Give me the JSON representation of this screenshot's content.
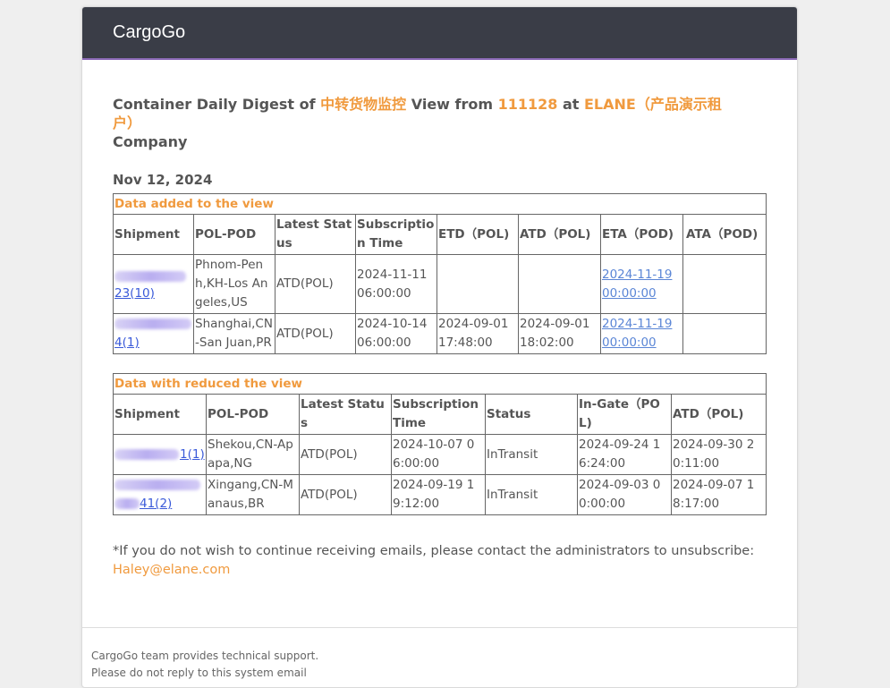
{
  "app": {
    "brand": "CargoGo"
  },
  "digest": {
    "title_prefix": "Container Daily Digest of ",
    "view_name": "中转货物监控",
    "title_mid": " View from ",
    "user_id": "111128",
    "title_at": " at ",
    "company_name": "ELANE（产品演示租户）",
    "title_suffix": "Company",
    "date": "Nov 12, 2024"
  },
  "added_table": {
    "caption": "Data added to the view",
    "headers": [
      "Shipment",
      "POL-POD",
      "Latest Status",
      "Subscription Time",
      "ETD（POL)",
      "ATD（POL)",
      "ETA（POD)",
      "ATA（POD)"
    ],
    "rows": [
      {
        "shipment_visible": "23(10)",
        "pol_pod": "Phnom-Penh,KH-Los Angeles,US",
        "latest_status": "ATD(POL)",
        "subscription_time": "2024-11-11 06:00:00",
        "etd": "",
        "atd": "",
        "eta": "2024-11-19 00:00:00",
        "ata": ""
      },
      {
        "shipment_visible": "4(1)",
        "pol_pod": "Shanghai,CN-San Juan,PR",
        "latest_status": "ATD(POL)",
        "subscription_time": "2024-10-14 06:00:00",
        "etd": "2024-09-01 17:48:00",
        "atd": "2024-09-01 18:02:00",
        "eta": "2024-11-19 00:00:00",
        "ata": ""
      }
    ]
  },
  "reduced_table": {
    "caption": "Data with reduced the view",
    "headers": [
      "Shipment",
      "POL-POD",
      "Latest Status",
      "Subscription Time",
      "Status",
      "In-Gate（POL)",
      "ATD（POL)"
    ],
    "rows": [
      {
        "shipment_visible": "1(1)",
        "pol_pod": "Shekou,CN-Apapa,NG",
        "latest_status": "ATD(POL)",
        "subscription_time": "2024-10-07 06:00:00",
        "status": "InTransit",
        "in_gate": "2024-09-24 16:24:00",
        "atd": "2024-09-30 20:11:00"
      },
      {
        "shipment_visible": "41(2)",
        "pol_pod": "Xingang,CN-Manaus,BR",
        "latest_status": "ATD(POL)",
        "subscription_time": "2024-09-19 19:12:00",
        "status": "InTransit",
        "in_gate": "2024-09-03 00:00:00",
        "atd": "2024-09-07 18:17:00"
      }
    ]
  },
  "notice": {
    "text": "*If you do not wish to continue receiving emails, please contact the administrators to unsubscribe:",
    "email": "Haley@elane.com"
  },
  "footer": {
    "line1": "CargoGo team provides technical support.",
    "line2": "Please do not reply to this system email"
  },
  "colors": {
    "header_bg": "#3a3d47",
    "accent": "#f09a3e",
    "link": "#3a5ad9",
    "eta_link": "#5b86d6"
  }
}
